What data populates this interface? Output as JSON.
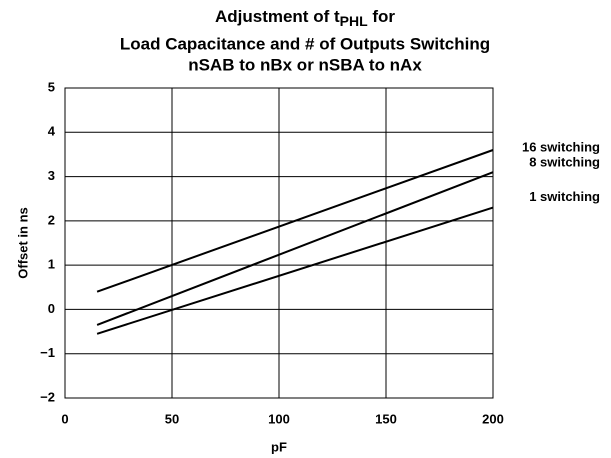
{
  "chart_data": {
    "type": "line",
    "title": {
      "prefix": "Adjustment of t",
      "subscript": "PHL",
      "suffix": " for"
    },
    "subtitle": [
      "Load Capacitance and # of Outputs Switching",
      "nSAB to nBx or nSBA to nAx"
    ],
    "x_label": "pF",
    "y_label": "Offset in ns",
    "x": [
      15,
      200
    ],
    "series": [
      {
        "name": "16 switching",
        "color": "#000000",
        "values": [
          0.4,
          3.6
        ]
      },
      {
        "name": "8 switching",
        "color": "#000000",
        "values": [
          -0.35,
          3.1
        ]
      },
      {
        "name": "1 switching",
        "color": "#000000",
        "values": [
          -0.55,
          2.3
        ]
      }
    ],
    "xlim": [
      0,
      200
    ],
    "xticks": [
      0,
      50,
      100,
      150,
      200
    ],
    "ylim": [
      -2,
      5
    ],
    "yticks": [
      {
        "value": -2,
        "label": "−2"
      },
      {
        "value": -1,
        "label": "−1"
      },
      0,
      1,
      2,
      3,
      4,
      5
    ],
    "grid": true
  }
}
